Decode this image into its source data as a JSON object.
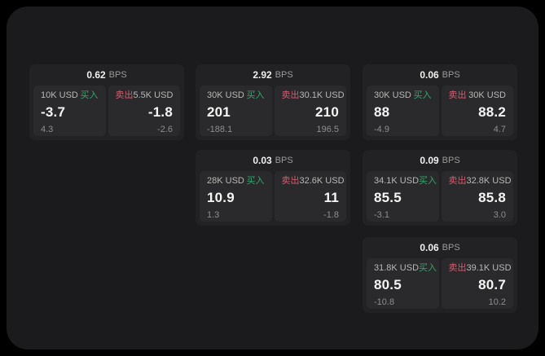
{
  "colors": {
    "background": "#000000",
    "panel": "#1b1b1d",
    "card": "#222224",
    "tile": "#2a2a2c",
    "buy_green": "#36a46d",
    "sell_red": "#d65a6e",
    "price_text": "#f5f5f5",
    "label_text": "#b8b8b8",
    "muted_text": "#8d8d8d"
  },
  "labels": {
    "bps": "BPS",
    "buy": "买入",
    "sell": "卖出"
  },
  "cards": [
    {
      "bps": "0.62",
      "buy": {
        "amount": "10K USD",
        "price": "-3.7",
        "delta": "4.3"
      },
      "sell": {
        "amount": "5.5K USD",
        "price": "-1.8",
        "delta": "-2.6"
      }
    },
    {
      "bps": "2.92",
      "buy": {
        "amount": "30K USD",
        "price": "201",
        "delta": "-188.1"
      },
      "sell": {
        "amount": "30.1K USD",
        "price": "210",
        "delta": "196.5"
      }
    },
    {
      "bps": "0.06",
      "buy": {
        "amount": "30K USD",
        "price": "88",
        "delta": "-4.9"
      },
      "sell": {
        "amount": "30K USD",
        "price": "88.2",
        "delta": "4.7"
      }
    },
    {
      "bps": "0.03",
      "buy": {
        "amount": "28K USD",
        "price": "10.9",
        "delta": "1.3"
      },
      "sell": {
        "amount": "32.6K USD",
        "price": "11",
        "delta": "-1.8"
      }
    },
    {
      "bps": "0.09",
      "buy": {
        "amount": "34.1K USD",
        "price": "85.5",
        "delta": "-3.1"
      },
      "sell": {
        "amount": "32.8K USD",
        "price": "85.8",
        "delta": "3.0"
      }
    },
    {
      "bps": "0.06",
      "buy": {
        "amount": "31.8K USD",
        "price": "80.5",
        "delta": "-10.8"
      },
      "sell": {
        "amount": "39.1K USD",
        "price": "80.7",
        "delta": "10.2"
      }
    }
  ]
}
